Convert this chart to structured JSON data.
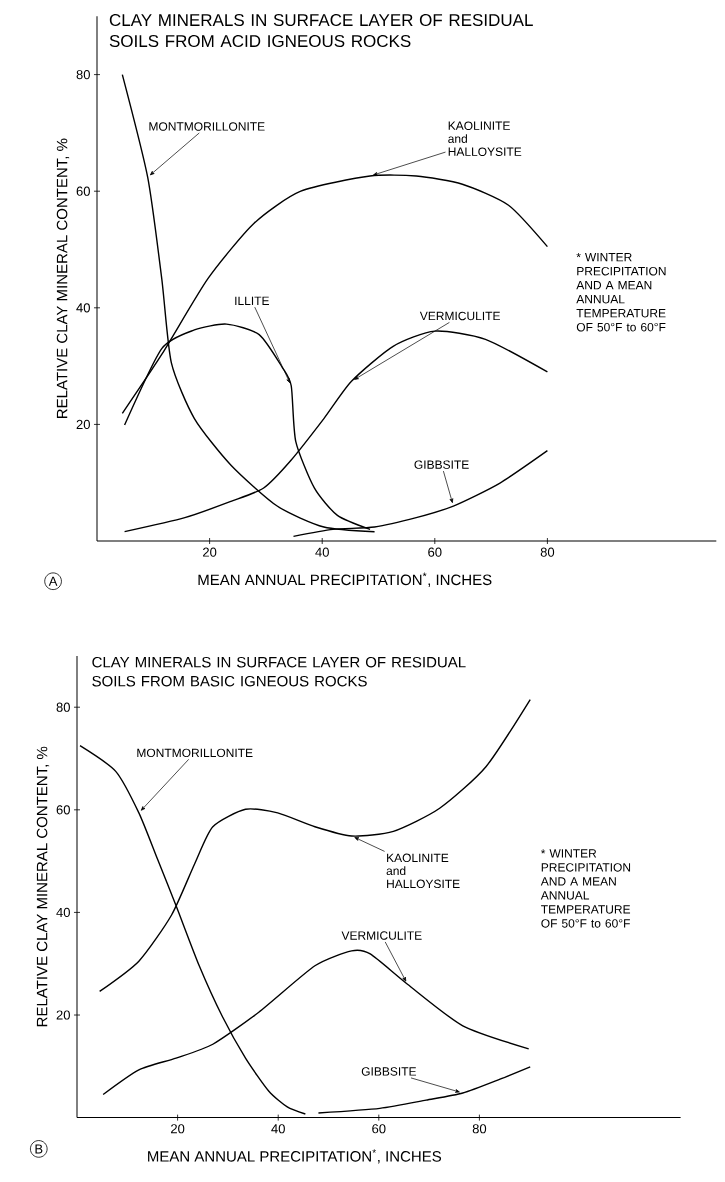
{
  "chart_data": [
    {
      "type": "line",
      "title": "CLAY MINERALS IN SURFACE LAYER OF RESIDUAL SOILS FROM ACID IGNEOUS ROCKS",
      "xlabel": "MEAN ANNUAL PRECIPITATION$^{*}$, INCHES",
      "ylabel": "RELATIVE CLAY MINERAL CONTENT, %",
      "annotations": [
        "A",
        "* WINTER PRECIPITATION AND A MEAN ANNUAL TEMPERATURE OF 50°F to 60°F"
      ],
      "xlim": [
        0,
        110
      ],
      "ylim": [
        0,
        90
      ],
      "xticks": [
        20,
        40,
        60,
        80
      ],
      "yticks": [
        20,
        40,
        60,
        80
      ],
      "line_style": "solid",
      "series": [
        {
          "name": "MONTMORILLONITE",
          "color": "#000000",
          "x": [
            4.5,
            9,
            11.5,
            13.2,
            17.3,
            23.8,
            32,
            40.3,
            49.3
          ],
          "values": [
            80,
            62.4,
            45,
            30.6,
            21,
            13,
            6,
            2.4,
            1.6
          ]
        },
        {
          "name": "KAOLINITE and HALLOYSITE",
          "color": "#000000",
          "x": [
            4.5,
            11.5,
            19.7,
            27.9,
            36.2,
            48.5,
            56.7,
            64.9,
            73.1,
            80
          ],
          "values": [
            21.9,
            32,
            45,
            54.5,
            60,
            62.6,
            62.6,
            61.2,
            57.6,
            50.5
          ]
        },
        {
          "name": "ILLITE",
          "color": "#000000",
          "x": [
            4.9,
            11.5,
            17.3,
            23,
            28.8,
            32.9,
            34.5,
            35.3,
            38.6,
            42.7,
            48.5
          ],
          "values": [
            19.9,
            33,
            36.2,
            37.2,
            35.4,
            29.8,
            26.6,
            17.1,
            9.1,
            4.4,
            2
          ]
        },
        {
          "name": "VERMICULITE",
          "color": "#000000",
          "x": [
            4.9,
            15.6,
            23.8,
            29.6,
            34.5,
            40.3,
            45.2,
            52.6,
            60,
            69,
            80
          ],
          "values": [
            1.6,
            4,
            6.8,
            9.1,
            13.9,
            21,
            27.4,
            33.4,
            36,
            34.6,
            29
          ]
        },
        {
          "name": "GIBBSITE",
          "color": "#000000",
          "x": [
            34.9,
            41.9,
            49.3,
            56.7,
            63.3,
            71.5,
            80
          ],
          "values": [
            0.8,
            2,
            2.4,
            4,
            6,
            9.9,
            15.5
          ]
        }
      ]
    },
    {
      "type": "line",
      "title": "CLAY MINERALS IN SURFACE LAYER OF RESIDUAL SOILS FROM BASIC IGNEOUS ROCKS",
      "xlabel": "MEAN ANNUAL PRECIPITATION$^{*}$, INCHES",
      "ylabel": "RELATIVE CLAY MINERAL CONTENT, %",
      "annotations": [
        "B",
        "* WINTER PRECIPITATION AND A MEAN ANNUAL TEMPERATURE OF 50°F to 60°F"
      ],
      "xlim": [
        0,
        120
      ],
      "ylim": [
        0,
        90
      ],
      "xticks": [
        20,
        40,
        60,
        80
      ],
      "yticks": [
        20,
        40,
        60,
        80
      ],
      "line_style": "solid",
      "series": [
        {
          "name": "MONTMORILLONITE",
          "color": "#000000",
          "x": [
            0.6,
            7.7,
            12.3,
            16,
            19.7,
            24.3,
            28.9,
            33.5,
            38.1,
            41.8,
            45.4
          ],
          "values": [
            72.5,
            67.5,
            59.4,
            50.4,
            41.3,
            29.6,
            19.7,
            11.6,
            5.2,
            2.1,
            0.7
          ]
        },
        {
          "name": "KAOLINITE and HALLOYSITE",
          "color": "#000000",
          "x": [
            4.5,
            12.3,
            18.8,
            23.4,
            27,
            33.5,
            39.9,
            47.3,
            54.6,
            62.9,
            72.1,
            81.3,
            90.1
          ],
          "values": [
            24.6,
            30.5,
            39.5,
            49.5,
            56.7,
            60.1,
            59.4,
            56.7,
            54.9,
            55.8,
            60.3,
            68.4,
            81.5
          ]
        },
        {
          "name": "VERMICULITE",
          "color": "#000000",
          "x": [
            5.2,
            12.3,
            19.7,
            27,
            36.2,
            47.3,
            54.6,
            58.3,
            65.7,
            76.7,
            89.8
          ],
          "values": [
            4.5,
            9.3,
            11.6,
            14.3,
            20.6,
            29.6,
            32.5,
            31.9,
            26,
            17.9,
            13.4
          ]
        },
        {
          "name": "GIBBSITE",
          "color": "#000000",
          "x": [
            48,
            60.2,
            69.4,
            76.7,
            84.1,
            90.1
          ],
          "values": [
            0.9,
            1.8,
            3.4,
            4.8,
            7.5,
            9.9
          ]
        }
      ]
    }
  ]
}
